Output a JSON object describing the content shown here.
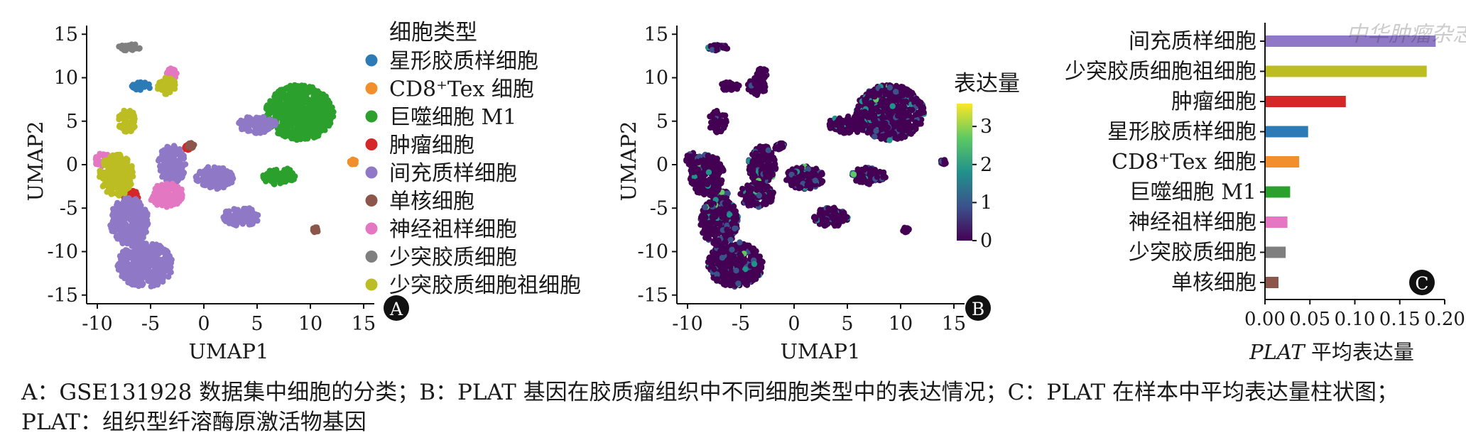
{
  "caption": {
    "text": "A：GSE131928 数据集中细胞的分类；B：PLAT 基因在胶质瘤组织中不同细胞类型中的表达情况；C：PLAT 在样本中平均表达量柱状图；PLAT：组织型纤溶酶原激活物基因"
  },
  "watermark": "中华肿瘤杂志",
  "chart_data": [
    {
      "panel": "A",
      "type": "scatter",
      "xlabel": "UMAP1",
      "ylabel": "UMAP2",
      "xlim": [
        -11,
        16
      ],
      "ylim": [
        -16,
        16
      ],
      "x_ticks": [
        -10,
        -5,
        0,
        5,
        10,
        15
      ],
      "y_ticks": [
        15,
        10,
        5,
        0,
        -5,
        -10,
        -15
      ],
      "legend_title": "细胞类型",
      "legend_placement": "right",
      "series": [
        {
          "name": "星形胶质样细胞",
          "color": "#2c7bb6",
          "clusters": [
            {
              "x": -6.0,
              "y": 9.0,
              "rx": 1.0,
              "ry": 0.5
            }
          ]
        },
        {
          "name": "CD8⁺Tex 细胞",
          "color": "#f28e2b",
          "clusters": [
            {
              "x": 14.0,
              "y": 0.3,
              "rx": 0.3,
              "ry": 0.3
            }
          ]
        },
        {
          "name": "巨噬细胞 M1",
          "color": "#2ca02c",
          "clusters": [
            {
              "x": 9.0,
              "y": 6.0,
              "rx": 3.2,
              "ry": 3.2
            },
            {
              "x": 7.0,
              "y": -1.3,
              "rx": 1.6,
              "ry": 1.0
            }
          ]
        },
        {
          "name": "肿瘤细胞",
          "color": "#d62728",
          "clusters": [
            {
              "x": -7.0,
              "y": -3.5,
              "rx": 1.0,
              "ry": 0.6
            },
            {
              "x": -7.6,
              "y": -5.5,
              "rx": 0.4,
              "ry": 0.4
            },
            {
              "x": -1.5,
              "y": 2.0,
              "rx": 0.3,
              "ry": 0.3
            }
          ]
        },
        {
          "name": "间充质样细胞",
          "color": "#8f79c7",
          "clusters": [
            {
              "x": -5.5,
              "y": -11.5,
              "rx": 2.6,
              "ry": 2.6
            },
            {
              "x": -7.0,
              "y": -6.5,
              "rx": 1.8,
              "ry": 2.8
            },
            {
              "x": 1.0,
              "y": -1.5,
              "rx": 1.8,
              "ry": 1.3
            },
            {
              "x": 3.5,
              "y": -6.0,
              "rx": 1.7,
              "ry": 1.1
            },
            {
              "x": -3.0,
              "y": 0.0,
              "rx": 1.3,
              "ry": 2.2
            },
            {
              "x": 5.0,
              "y": 4.6,
              "rx": 1.8,
              "ry": 1.0
            }
          ]
        },
        {
          "name": "单核细胞",
          "color": "#8c564b",
          "clusters": [
            {
              "x": 10.5,
              "y": -7.5,
              "rx": 0.3,
              "ry": 0.3
            },
            {
              "x": -1.2,
              "y": 2.2,
              "rx": 0.3,
              "ry": 0.3
            }
          ]
        },
        {
          "name": "神经祖样细胞",
          "color": "#e377c2",
          "clusters": [
            {
              "x": -3.5,
              "y": -3.5,
              "rx": 1.6,
              "ry": 1.4
            },
            {
              "x": -9.5,
              "y": 0.5,
              "rx": 0.7,
              "ry": 0.9
            },
            {
              "x": -3.0,
              "y": 10.5,
              "rx": 0.5,
              "ry": 0.6
            }
          ]
        },
        {
          "name": "少突胶质细胞",
          "color": "#7f7f7f",
          "clusters": [
            {
              "x": -7.0,
              "y": 13.5,
              "rx": 1.1,
              "ry": 0.4
            }
          ]
        },
        {
          "name": "少突胶质细胞祖细胞",
          "color": "#bcbd22",
          "clusters": [
            {
              "x": -8.2,
              "y": -1.2,
              "rx": 1.6,
              "ry": 2.4
            },
            {
              "x": -7.2,
              "y": 5.0,
              "rx": 0.9,
              "ry": 1.3
            },
            {
              "x": -3.5,
              "y": 9.0,
              "rx": 0.9,
              "ry": 1.0
            }
          ]
        }
      ]
    },
    {
      "panel": "B",
      "type": "scatter",
      "xlabel": "UMAP1",
      "ylabel": "UMAP2",
      "xlim": [
        -11,
        16
      ],
      "ylim": [
        -16,
        16
      ],
      "x_ticks": [
        -10,
        -5,
        0,
        5,
        10,
        15
      ],
      "y_ticks": [
        15,
        10,
        5,
        0,
        -5,
        -10,
        -15
      ],
      "colorbar_title": "表达量",
      "colorbar_ticks": [
        3,
        2,
        1,
        0
      ],
      "colorbar_range": [
        0,
        3.6
      ],
      "colorbar_colors": [
        "#440154",
        "#3b528b",
        "#21918c",
        "#5ec962",
        "#fde725"
      ]
    },
    {
      "panel": "C",
      "type": "bar",
      "orientation": "horizontal",
      "xlabel_italic": "PLAT",
      "xlabel_rest": " 平均表达量",
      "xlim": [
        0,
        0.2
      ],
      "x_ticks": [
        "0.00",
        "0.05",
        "0.10",
        "0.15",
        "0.20"
      ],
      "categories": [
        "间充质样细胞",
        "少突胶质细胞祖细胞",
        "肿瘤细胞",
        "星形胶质样细胞",
        "CD8⁺Tex 细胞",
        "巨噬细胞 M1",
        "神经祖样细胞",
        "少突胶质细胞",
        "单核细胞"
      ],
      "values": [
        0.19,
        0.18,
        0.09,
        0.048,
        0.038,
        0.028,
        0.025,
        0.023,
        0.015
      ],
      "colors": [
        "#8f79c7",
        "#bcbd22",
        "#d62728",
        "#2c7bb6",
        "#f28e2b",
        "#2ca02c",
        "#e377c2",
        "#7f7f7f",
        "#8c564b"
      ]
    }
  ]
}
